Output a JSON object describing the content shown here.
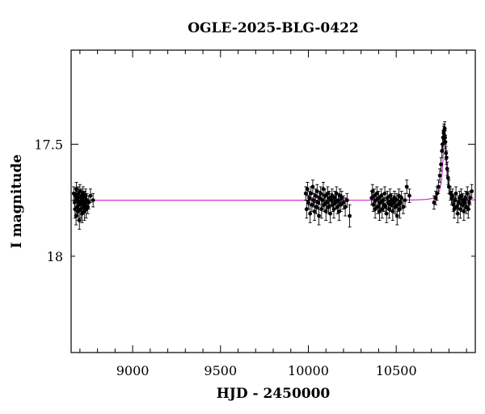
{
  "chart_data": {
    "type": "scatter",
    "title": "OGLE-2025-BLG-0422",
    "xlabel": "HJD - 2450000",
    "ylabel": "I magnitude",
    "xlim": [
      8650,
      10950
    ],
    "ylim": [
      18.43,
      17.08
    ],
    "y_inverted": true,
    "grid": false,
    "xticks": [
      9000,
      9500,
      10000,
      10500
    ],
    "xtick_labels": [
      "9000",
      "9500",
      "10000",
      "10500"
    ],
    "yticks": [
      17.5,
      18
    ],
    "ytick_labels": [
      "17.5",
      "18"
    ],
    "colors": {
      "data": "#000000",
      "model": "#cc33cc"
    },
    "series": [
      {
        "type": "model_line",
        "baseline_mag": 17.75,
        "peak_mag": 17.46,
        "peak_time": 10775,
        "timescale": 12,
        "samples": 700
      },
      {
        "type": "points_with_errorbars",
        "points": [
          [
            8665,
            17.72,
            0.03
          ],
          [
            8670,
            17.76,
            0.03
          ],
          [
            8672,
            17.79,
            0.04
          ],
          [
            8675,
            17.73,
            0.03
          ],
          [
            8678,
            17.82,
            0.04
          ],
          [
            8680,
            17.7,
            0.03
          ],
          [
            8683,
            17.75,
            0.03
          ],
          [
            8685,
            17.78,
            0.04
          ],
          [
            8688,
            17.74,
            0.03
          ],
          [
            8690,
            17.8,
            0.04
          ],
          [
            8692,
            17.72,
            0.03
          ],
          [
            8695,
            17.76,
            0.03
          ],
          [
            8697,
            17.84,
            0.04
          ],
          [
            8700,
            17.71,
            0.03
          ],
          [
            8702,
            17.77,
            0.03
          ],
          [
            8705,
            17.79,
            0.04
          ],
          [
            8707,
            17.74,
            0.03
          ],
          [
            8710,
            17.73,
            0.03
          ],
          [
            8712,
            17.81,
            0.04
          ],
          [
            8715,
            17.76,
            0.03
          ],
          [
            8718,
            17.72,
            0.03
          ],
          [
            8720,
            17.78,
            0.03
          ],
          [
            8722,
            17.75,
            0.03
          ],
          [
            8725,
            17.8,
            0.04
          ],
          [
            8728,
            17.74,
            0.03
          ],
          [
            8730,
            17.77,
            0.03
          ],
          [
            8733,
            17.73,
            0.03
          ],
          [
            8735,
            17.79,
            0.04
          ],
          [
            8740,
            17.75,
            0.03
          ],
          [
            8745,
            17.78,
            0.03
          ],
          [
            8750,
            17.76,
            0.03
          ],
          [
            8760,
            17.73,
            0.03
          ],
          [
            8775,
            17.75,
            0.03
          ],
          [
            9985,
            17.72,
            0.03
          ],
          [
            9990,
            17.79,
            0.04
          ],
          [
            9995,
            17.7,
            0.03
          ],
          [
            10000,
            17.76,
            0.03
          ],
          [
            10005,
            17.74,
            0.03
          ],
          [
            10010,
            17.81,
            0.04
          ],
          [
            10015,
            17.72,
            0.03
          ],
          [
            10020,
            17.77,
            0.03
          ],
          [
            10025,
            17.69,
            0.03
          ],
          [
            10030,
            17.75,
            0.03
          ],
          [
            10035,
            17.8,
            0.04
          ],
          [
            10040,
            17.73,
            0.03
          ],
          [
            10045,
            17.78,
            0.03
          ],
          [
            10050,
            17.71,
            0.03
          ],
          [
            10055,
            17.76,
            0.03
          ],
          [
            10060,
            17.82,
            0.04
          ],
          [
            10065,
            17.74,
            0.03
          ],
          [
            10070,
            17.72,
            0.03
          ],
          [
            10075,
            17.79,
            0.04
          ],
          [
            10080,
            17.75,
            0.03
          ],
          [
            10085,
            17.7,
            0.03
          ],
          [
            10090,
            17.77,
            0.03
          ],
          [
            10095,
            17.73,
            0.03
          ],
          [
            10100,
            17.8,
            0.04
          ],
          [
            10105,
            17.76,
            0.03
          ],
          [
            10110,
            17.72,
            0.03
          ],
          [
            10115,
            17.78,
            0.03
          ],
          [
            10120,
            17.74,
            0.03
          ],
          [
            10125,
            17.81,
            0.04
          ],
          [
            10130,
            17.75,
            0.03
          ],
          [
            10135,
            17.73,
            0.03
          ],
          [
            10140,
            17.77,
            0.03
          ],
          [
            10145,
            17.79,
            0.04
          ],
          [
            10150,
            17.74,
            0.03
          ],
          [
            10155,
            17.76,
            0.03
          ],
          [
            10160,
            17.72,
            0.03
          ],
          [
            10165,
            17.78,
            0.03
          ],
          [
            10170,
            17.75,
            0.03
          ],
          [
            10175,
            17.8,
            0.04
          ],
          [
            10180,
            17.73,
            0.03
          ],
          [
            10185,
            17.77,
            0.03
          ],
          [
            10190,
            17.74,
            0.03
          ],
          [
            10200,
            17.76,
            0.03
          ],
          [
            10210,
            17.78,
            0.04
          ],
          [
            10220,
            17.75,
            0.03
          ],
          [
            10235,
            17.82,
            0.05
          ],
          [
            10360,
            17.74,
            0.03
          ],
          [
            10365,
            17.71,
            0.03
          ],
          [
            10370,
            17.77,
            0.03
          ],
          [
            10375,
            17.73,
            0.03
          ],
          [
            10380,
            17.79,
            0.04
          ],
          [
            10385,
            17.75,
            0.03
          ],
          [
            10390,
            17.72,
            0.03
          ],
          [
            10395,
            17.78,
            0.03
          ],
          [
            10400,
            17.74,
            0.03
          ],
          [
            10405,
            17.8,
            0.04
          ],
          [
            10410,
            17.76,
            0.03
          ],
          [
            10415,
            17.73,
            0.03
          ],
          [
            10420,
            17.79,
            0.04
          ],
          [
            10425,
            17.75,
            0.03
          ],
          [
            10430,
            17.77,
            0.03
          ],
          [
            10435,
            17.72,
            0.03
          ],
          [
            10440,
            17.78,
            0.03
          ],
          [
            10445,
            17.81,
            0.04
          ],
          [
            10450,
            17.74,
            0.03
          ],
          [
            10455,
            17.76,
            0.03
          ],
          [
            10460,
            17.79,
            0.04
          ],
          [
            10465,
            17.73,
            0.03
          ],
          [
            10470,
            17.77,
            0.03
          ],
          [
            10475,
            17.75,
            0.03
          ],
          [
            10480,
            17.8,
            0.04
          ],
          [
            10485,
            17.76,
            0.03
          ],
          [
            10490,
            17.74,
            0.03
          ],
          [
            10495,
            17.78,
            0.03
          ],
          [
            10500,
            17.75,
            0.03
          ],
          [
            10505,
            17.82,
            0.04
          ],
          [
            10510,
            17.77,
            0.03
          ],
          [
            10515,
            17.73,
            0.03
          ],
          [
            10520,
            17.79,
            0.04
          ],
          [
            10525,
            17.76,
            0.03
          ],
          [
            10530,
            17.74,
            0.03
          ],
          [
            10540,
            17.78,
            0.03
          ],
          [
            10550,
            17.75,
            0.03
          ],
          [
            10560,
            17.69,
            0.03
          ],
          [
            10575,
            17.73,
            0.03
          ],
          [
            10715,
            17.76,
            0.03
          ],
          [
            10725,
            17.74,
            0.03
          ],
          [
            10732,
            17.72,
            0.03
          ],
          [
            10740,
            17.69,
            0.03
          ],
          [
            10748,
            17.64,
            0.03
          ],
          [
            10755,
            17.59,
            0.03
          ],
          [
            10760,
            17.53,
            0.03
          ],
          [
            10764,
            17.5,
            0.03
          ],
          [
            10767,
            17.47,
            0.03
          ],
          [
            10770,
            17.45,
            0.03
          ],
          [
            10772,
            17.44,
            0.03
          ],
          [
            10774,
            17.46,
            0.03
          ],
          [
            10776,
            17.43,
            0.03
          ],
          [
            10778,
            17.47,
            0.03
          ],
          [
            10780,
            17.49,
            0.03
          ],
          [
            10783,
            17.54,
            0.03
          ],
          [
            10786,
            17.56,
            0.03
          ],
          [
            10790,
            17.61,
            0.03
          ],
          [
            10795,
            17.65,
            0.03
          ],
          [
            10800,
            17.69,
            0.03
          ],
          [
            10808,
            17.72,
            0.03
          ],
          [
            10815,
            17.74,
            0.03
          ],
          [
            10820,
            17.73,
            0.03
          ],
          [
            10825,
            17.77,
            0.03
          ],
          [
            10830,
            17.79,
            0.04
          ],
          [
            10835,
            17.75,
            0.03
          ],
          [
            10840,
            17.72,
            0.03
          ],
          [
            10845,
            17.78,
            0.03
          ],
          [
            10850,
            17.81,
            0.04
          ],
          [
            10855,
            17.76,
            0.03
          ],
          [
            10860,
            17.74,
            0.03
          ],
          [
            10865,
            17.79,
            0.04
          ],
          [
            10870,
            17.73,
            0.03
          ],
          [
            10875,
            17.77,
            0.03
          ],
          [
            10880,
            17.75,
            0.03
          ],
          [
            10885,
            17.8,
            0.04
          ],
          [
            10890,
            17.76,
            0.03
          ],
          [
            10895,
            17.74,
            0.03
          ],
          [
            10900,
            17.78,
            0.03
          ],
          [
            10905,
            17.72,
            0.03
          ],
          [
            10910,
            17.79,
            0.04
          ],
          [
            10915,
            17.76,
            0.03
          ],
          [
            10920,
            17.74,
            0.03
          ],
          [
            10930,
            17.71,
            0.03
          ]
        ]
      }
    ]
  }
}
